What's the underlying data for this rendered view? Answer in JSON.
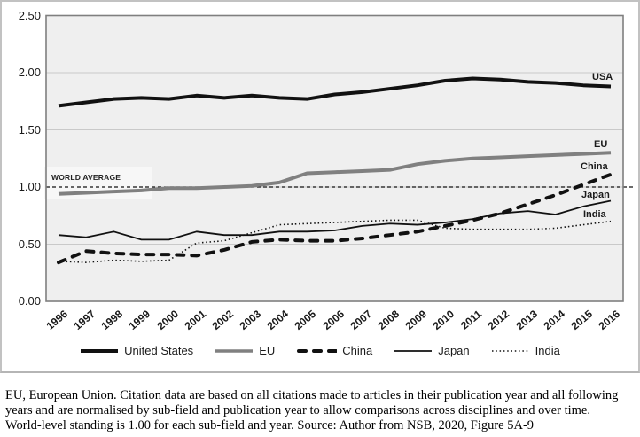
{
  "chart_data": {
    "type": "line",
    "x": [
      1996,
      1997,
      1998,
      1999,
      2000,
      2001,
      2002,
      2003,
      2004,
      2005,
      2006,
      2007,
      2008,
      2009,
      2010,
      2011,
      2012,
      2013,
      2014,
      2015,
      2016
    ],
    "series": [
      {
        "name": "EU",
        "end_label": "EU",
        "color": "#808080",
        "style": "solid-thick",
        "values": [
          0.94,
          0.95,
          0.96,
          0.97,
          0.99,
          0.99,
          1.0,
          1.01,
          1.04,
          1.12,
          1.13,
          1.14,
          1.15,
          1.2,
          1.23,
          1.25,
          1.26,
          1.27,
          1.28,
          1.29,
          1.3
        ]
      },
      {
        "name": "Japan",
        "end_label": "Japan",
        "color": "#111111",
        "style": "solid-thin",
        "values": [
          0.58,
          0.56,
          0.61,
          0.54,
          0.54,
          0.61,
          0.58,
          0.58,
          0.61,
          0.61,
          0.62,
          0.66,
          0.68,
          0.67,
          0.69,
          0.72,
          0.77,
          0.79,
          0.76,
          0.83,
          0.88
        ]
      },
      {
        "name": "India",
        "end_label": "India",
        "color": "#111111",
        "style": "dotted",
        "values": [
          0.35,
          0.34,
          0.36,
          0.35,
          0.36,
          0.51,
          0.53,
          0.6,
          0.67,
          0.68,
          0.69,
          0.7,
          0.71,
          0.71,
          0.64,
          0.63,
          0.63,
          0.63,
          0.64,
          0.67,
          0.7
        ]
      },
      {
        "name": "China",
        "end_label": "China",
        "color": "#111111",
        "style": "dashed-thick",
        "values": [
          0.34,
          0.44,
          0.42,
          0.41,
          0.41,
          0.4,
          0.45,
          0.52,
          0.54,
          0.53,
          0.53,
          0.55,
          0.58,
          0.61,
          0.66,
          0.71,
          0.77,
          0.85,
          0.93,
          1.02,
          1.11
        ]
      },
      {
        "name": "United States",
        "end_label": "USA",
        "color": "#111111",
        "style": "solid-thick",
        "values": [
          1.71,
          1.74,
          1.77,
          1.78,
          1.77,
          1.8,
          1.78,
          1.8,
          1.78,
          1.77,
          1.81,
          1.83,
          1.86,
          1.89,
          1.93,
          1.95,
          1.94,
          1.92,
          1.91,
          1.89,
          1.88
        ]
      }
    ],
    "legend_order": [
      "United States",
      "EU",
      "China",
      "Japan",
      "India"
    ],
    "ylim": [
      0,
      2.5
    ],
    "yticks": [
      2.5,
      2.0,
      1.5,
      1.0,
      0.5,
      0.0
    ],
    "reference_line": {
      "value": 1.0,
      "label": "WORLD AVERAGE"
    },
    "grid": "horizontal",
    "legend_position": "bottom",
    "plot_bg_color": "#efefef",
    "grid_color": "#c9c9c9",
    "frame_color": "#7f7f7f"
  },
  "legend": {
    "items": [
      {
        "label": "United States"
      },
      {
        "label": "EU"
      },
      {
        "label": "China"
      },
      {
        "label": "Japan"
      },
      {
        "label": "India"
      }
    ]
  },
  "caption": {
    "line1": "EU, European Union. Citation data are based on all citations made to articles in their publication year and all following",
    "line2": "years and are normalised by sub-field and publication year to allow comparisons across disciplines and over time.",
    "line3": "World-level standing is 1.00 for each sub-field and year. Source: Author from NSB, 2020, Figure 5A-9"
  }
}
